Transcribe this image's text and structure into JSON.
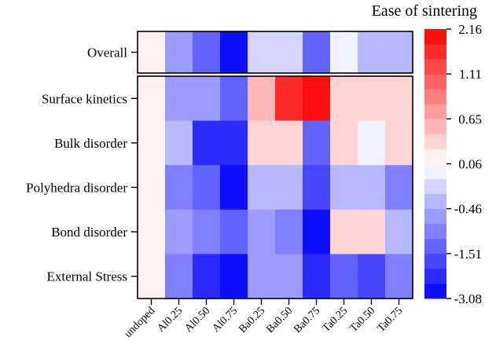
{
  "chart_data": {
    "type": "heatmap",
    "title": "Ease of sintering",
    "columns": [
      "undoped",
      "Al0.25",
      "Al0.50",
      "Al0.75",
      "Ba0.25",
      "Ba0.50",
      "Ba0.75",
      "Ta0.25",
      "Ta0.50",
      "Ta0.75"
    ],
    "top_panel": {
      "rows": [
        "Overall"
      ],
      "values": [
        [
          0.06,
          -0.7,
          -1.3,
          -2.7,
          -0.2,
          -0.2,
          -1.3,
          -0.1,
          -0.35,
          -0.35
        ]
      ]
    },
    "main_panel": {
      "rows": [
        "Surface kinetics",
        "Bulk disorder",
        "Polyhedra disorder",
        "Bond disorder",
        "External Stress"
      ],
      "values": [
        [
          0.06,
          -0.6,
          -0.6,
          -1.4,
          0.55,
          1.6,
          2.1,
          0.3,
          0.3,
          0.3
        ],
        [
          0.06,
          -0.35,
          -2.5,
          -2.5,
          0.3,
          0.3,
          -1.4,
          0.3,
          -0.1,
          0.3
        ],
        [
          0.06,
          -1.1,
          -1.4,
          -2.8,
          -0.35,
          -0.35,
          -1.8,
          -0.35,
          -0.35,
          -1.1
        ],
        [
          0.06,
          -0.6,
          -1.0,
          -1.5,
          -0.6,
          -1.1,
          -2.8,
          0.3,
          0.3,
          -0.35
        ],
        [
          0.06,
          -1.1,
          -2.4,
          -2.8,
          -0.7,
          -0.7,
          -2.1,
          -1.2,
          -1.8,
          -1.1
        ]
      ]
    },
    "colorbar": {
      "min": -3.08,
      "max": 2.16,
      "tick_labels": [
        "2.16",
        "1.11",
        "0.65",
        "0.06",
        "-0.46",
        "-1.51",
        "-3.08"
      ],
      "tick_values": [
        2.16,
        1.11,
        0.65,
        0.06,
        -0.46,
        -1.51,
        -3.08
      ],
      "levels": 18,
      "colors": {
        "low": "#0000ff",
        "mid": "#ffffff",
        "high": "#ff0000"
      }
    }
  }
}
